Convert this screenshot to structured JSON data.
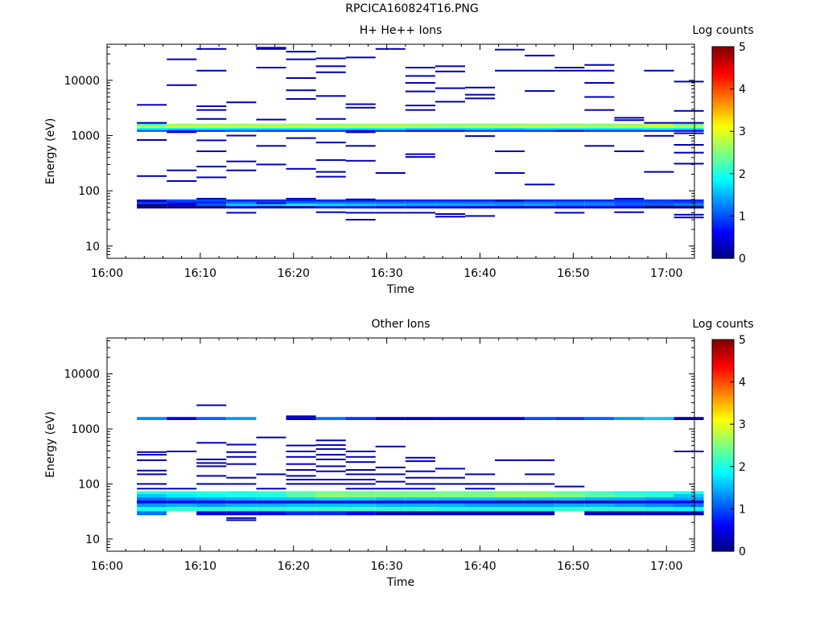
{
  "figure_title": "RPCICA160824T16.PNG",
  "colors": {
    "background": "#ffffff",
    "axis": "#000000",
    "colormap": [
      "#00008f",
      "#0000ff",
      "#0080ff",
      "#00ffff",
      "#80ff80",
      "#ffff00",
      "#ff8000",
      "#ff0000",
      "#800000"
    ]
  },
  "chart_data": [
    {
      "type": "heatmap",
      "title": "H+ He++ Ions",
      "xlabel": "Time",
      "ylabel": "Energy (eV)",
      "x_ticks": [
        "16:00",
        "16:10",
        "16:20",
        "16:30",
        "16:40",
        "16:50",
        "17:00"
      ],
      "x_tick_minutes": [
        0,
        10,
        20,
        30,
        40,
        50,
        60
      ],
      "x_range_minutes": [
        0,
        63
      ],
      "y_scale": "log",
      "y_range": [
        6,
        45000
      ],
      "y_ticks": [
        10,
        100,
        1000,
        10000
      ],
      "y_tick_labels": [
        "10",
        "100",
        "1000",
        "10000"
      ],
      "colorbar": {
        "label": "Log counts",
        "range": [
          0,
          5
        ],
        "ticks": [
          "0",
          "1",
          "2",
          "3",
          "4",
          "5"
        ]
      },
      "time_bin_starts_min": [
        3.2,
        6.4,
        9.6,
        12.8,
        16.0,
        19.2,
        22.4,
        25.6,
        28.8,
        32.0,
        35.2,
        38.4,
        41.6,
        44.8,
        48.0,
        51.2,
        54.4,
        57.6,
        60.8
      ],
      "time_bin_width_min": 3.2,
      "bands": [
        {
          "e_lo": 1500,
          "e_hi": 1650,
          "values": [
            2.2,
            2.6,
            2.6,
            2.6,
            2.6,
            2.6,
            2.6,
            2.6,
            2.6,
            2.6,
            2.5,
            2.5,
            2.5,
            2.6,
            2.5,
            2.5,
            2.6,
            2.8,
            2.4
          ]
        },
        {
          "e_lo": 1380,
          "e_hi": 1500,
          "values": [
            2.9,
            3.0,
            3.0,
            3.0,
            3.0,
            3.0,
            2.9,
            2.9,
            2.9,
            2.8,
            2.8,
            2.9,
            2.9,
            2.9,
            2.9,
            2.8,
            2.9,
            3.0,
            2.9
          ]
        },
        {
          "e_lo": 1270,
          "e_hi": 1380,
          "values": [
            1.9,
            1.8,
            1.9,
            1.8,
            1.8,
            1.8,
            1.8,
            1.8,
            1.9,
            1.7,
            1.7,
            1.8,
            1.7,
            1.8,
            1.8,
            1.8,
            1.8,
            1.9,
            1.8
          ]
        },
        {
          "e_lo": 1170,
          "e_hi": 1270,
          "values": [
            1.0,
            0.8,
            0.8,
            1.0,
            0.8,
            0.8,
            0.8,
            0.5,
            0.8,
            0.5,
            0.5,
            0.8,
            0.8,
            0.8,
            0.5,
            0.8,
            0.8,
            0.8,
            0.5
          ]
        },
        {
          "e_lo": 64,
          "e_hi": 70,
          "values": [
            1.0,
            1.0,
            1.0,
            0.8,
            0.8,
            0.8,
            0.8,
            0.8,
            0.8,
            0.8,
            0.8,
            0.8,
            0.8,
            0.8,
            0.8,
            0.8,
            0.9,
            0.9,
            0.8
          ]
        },
        {
          "e_lo": 58,
          "e_hi": 64,
          "values": [
            0.9,
            0.8,
            0.8,
            1.2,
            1.2,
            1.2,
            1.2,
            1.2,
            1.2,
            1.2,
            1.2,
            1.2,
            1.2,
            1.2,
            1.2,
            1.2,
            1.0,
            1.0,
            1.0
          ]
        },
        {
          "e_lo": 53,
          "e_hi": 58,
          "values": [
            0.0,
            0.6,
            1.0,
            1.6,
            1.6,
            1.8,
            1.7,
            1.6,
            1.5,
            1.4,
            1.4,
            1.4,
            1.3,
            1.4,
            1.2,
            1.2,
            1.0,
            1.0,
            1.2
          ]
        },
        {
          "e_lo": 48,
          "e_hi": 53,
          "values": [
            0.0,
            0.0,
            0.0,
            0.8,
            0.8,
            0.8,
            0.8,
            0.8,
            0.7,
            0.7,
            0.7,
            0.6,
            0.6,
            0.5,
            0.6,
            0.6,
            0.6,
            0.0,
            0.0
          ]
        }
      ],
      "sparse_counts": [
        [
          0,
          3600
        ],
        [
          0,
          1700
        ],
        [
          0,
          830
        ],
        [
          0,
          185
        ],
        [
          0,
          66
        ],
        [
          1,
          24000
        ],
        [
          1,
          8200
        ],
        [
          1,
          1150
        ],
        [
          1,
          235
        ],
        [
          1,
          150
        ],
        [
          1,
          58
        ],
        [
          2,
          37000
        ],
        [
          2,
          15000
        ],
        [
          2,
          3400
        ],
        [
          2,
          2900
        ],
        [
          2,
          2000
        ],
        [
          2,
          820
        ],
        [
          2,
          520
        ],
        [
          2,
          275
        ],
        [
          2,
          175
        ],
        [
          2,
          72
        ],
        [
          3,
          4000
        ],
        [
          3,
          1000
        ],
        [
          3,
          340
        ],
        [
          3,
          235
        ],
        [
          3,
          50
        ],
        [
          3,
          40
        ],
        [
          4,
          39000
        ],
        [
          4,
          37000
        ],
        [
          4,
          17000
        ],
        [
          4,
          1950
        ],
        [
          4,
          650
        ],
        [
          4,
          300
        ],
        [
          4,
          60
        ],
        [
          4,
          51
        ],
        [
          5,
          33000
        ],
        [
          5,
          24000
        ],
        [
          5,
          11000
        ],
        [
          5,
          6600
        ],
        [
          5,
          4600
        ],
        [
          5,
          900
        ],
        [
          5,
          250
        ],
        [
          5,
          72
        ],
        [
          5,
          51
        ],
        [
          6,
          25000
        ],
        [
          6,
          18000
        ],
        [
          6,
          14000
        ],
        [
          6,
          5200
        ],
        [
          6,
          2000
        ],
        [
          6,
          750
        ],
        [
          6,
          360
        ],
        [
          6,
          220
        ],
        [
          6,
          180
        ],
        [
          6,
          41
        ],
        [
          7,
          26000
        ],
        [
          7,
          3700
        ],
        [
          7,
          3200
        ],
        [
          7,
          1150
        ],
        [
          7,
          650
        ],
        [
          7,
          350
        ],
        [
          7,
          70
        ],
        [
          7,
          40
        ],
        [
          7,
          30
        ],
        [
          8,
          37000
        ],
        [
          8,
          210
        ],
        [
          8,
          40
        ],
        [
          9,
          17000
        ],
        [
          9,
          12000
        ],
        [
          9,
          9000
        ],
        [
          9,
          6300
        ],
        [
          9,
          3500
        ],
        [
          9,
          2900
        ],
        [
          9,
          460
        ],
        [
          9,
          410
        ],
        [
          9,
          40
        ],
        [
          10,
          18000
        ],
        [
          10,
          14500
        ],
        [
          10,
          7200
        ],
        [
          10,
          4100
        ],
        [
          10,
          38
        ],
        [
          10,
          34
        ],
        [
          11,
          7400
        ],
        [
          11,
          5500
        ],
        [
          11,
          4700
        ],
        [
          11,
          980
        ],
        [
          11,
          35
        ],
        [
          12,
          36000
        ],
        [
          12,
          15000
        ],
        [
          12,
          520
        ],
        [
          12,
          210
        ],
        [
          12,
          66
        ],
        [
          13,
          28000
        ],
        [
          13,
          15000
        ],
        [
          13,
          6400
        ],
        [
          13,
          130
        ],
        [
          14,
          17000
        ],
        [
          14,
          15000
        ],
        [
          14,
          40
        ],
        [
          15,
          19000
        ],
        [
          15,
          15000
        ],
        [
          15,
          9000
        ],
        [
          15,
          5000
        ],
        [
          15,
          2900
        ],
        [
          15,
          650
        ],
        [
          16,
          2100
        ],
        [
          16,
          1900
        ],
        [
          16,
          520
        ],
        [
          16,
          72
        ],
        [
          16,
          41
        ],
        [
          17,
          15000
        ],
        [
          17,
          1700
        ],
        [
          17,
          990
        ],
        [
          17,
          220
        ],
        [
          18,
          9500
        ],
        [
          18,
          2800
        ],
        [
          18,
          1700
        ],
        [
          18,
          1100
        ],
        [
          18,
          680
        ],
        [
          18,
          490
        ],
        [
          18,
          310
        ],
        [
          18,
          37
        ],
        [
          18,
          33
        ]
      ]
    },
    {
      "type": "heatmap",
      "title": "Other Ions",
      "xlabel": "Time",
      "ylabel": "Energy (eV)",
      "x_ticks": [
        "16:00",
        "16:10",
        "16:20",
        "16:30",
        "16:40",
        "16:50",
        "17:00"
      ],
      "x_tick_minutes": [
        0,
        10,
        20,
        30,
        40,
        50,
        60
      ],
      "x_range_minutes": [
        0,
        63
      ],
      "y_scale": "log",
      "y_range": [
        6,
        45000
      ],
      "y_ticks": [
        10,
        100,
        1000,
        10000
      ],
      "y_tick_labels": [
        "10",
        "100",
        "1000",
        "10000"
      ],
      "colorbar": {
        "label": "Log counts",
        "range": [
          0,
          5
        ],
        "ticks": [
          "0",
          "1",
          "2",
          "3",
          "4",
          "5"
        ]
      },
      "time_bin_starts_min": [
        3.2,
        6.4,
        9.6,
        12.8,
        16.0,
        19.2,
        22.4,
        25.6,
        28.8,
        32.0,
        35.2,
        38.4,
        41.6,
        44.8,
        48.0,
        51.2,
        54.4,
        57.6,
        60.8
      ],
      "time_bin_width_min": 3.2,
      "bands": [
        {
          "e_lo": 1450,
          "e_hi": 1650,
          "values": [
            1.3,
            0.5,
            1.1,
            1.4,
            -1,
            0.3,
            1.2,
            0.9,
            0.3,
            0.3,
            0.5,
            0.5,
            0.5,
            1.0,
            0.9,
            1.1,
            1.4,
            1.6,
            0.3
          ]
        },
        {
          "e_lo": 66,
          "e_hi": 74,
          "values": [
            2.0,
            2.0,
            2.1,
            2.0,
            2.1,
            2.3,
            2.4,
            2.4,
            2.4,
            2.4,
            2.4,
            2.4,
            2.5,
            2.5,
            2.3,
            2.2,
            2.0,
            2.0,
            2.0
          ]
        },
        {
          "e_lo": 57,
          "e_hi": 66,
          "values": [
            1.6,
            1.8,
            1.9,
            2.0,
            2.0,
            2.3,
            2.6,
            2.5,
            2.5,
            2.5,
            2.5,
            2.5,
            2.6,
            2.6,
            2.5,
            2.3,
            2.2,
            2.1,
            1.6
          ]
        },
        {
          "e_lo": 50,
          "e_hi": 57,
          "values": [
            1.2,
            1.3,
            1.4,
            1.5,
            1.6,
            1.6,
            1.7,
            1.7,
            1.6,
            1.6,
            1.6,
            1.6,
            1.6,
            1.6,
            1.6,
            1.5,
            1.5,
            1.4,
            1.4
          ]
        },
        {
          "e_lo": 44,
          "e_hi": 50,
          "values": [
            0.5,
            0.6,
            0.6,
            0.6,
            0.6,
            0.5,
            0.5,
            0.5,
            0.5,
            0.5,
            0.5,
            0.5,
            0.3,
            0.3,
            0.3,
            0.3,
            0.5,
            0.6,
            0.6
          ]
        },
        {
          "e_lo": 38,
          "e_hi": 44,
          "values": [
            1.4,
            1.5,
            1.4,
            1.5,
            1.5,
            1.6,
            1.6,
            1.6,
            1.5,
            1.5,
            1.5,
            1.4,
            1.4,
            1.4,
            1.5,
            1.5,
            1.4,
            1.3,
            1.2
          ]
        },
        {
          "e_lo": 32,
          "e_hi": 38,
          "values": [
            2.0,
            2.1,
            2.1,
            2.1,
            2.1,
            2.1,
            2.2,
            2.2,
            2.1,
            2.1,
            2.0,
            2.0,
            2.0,
            2.0,
            2.1,
            2.1,
            2.1,
            2.0,
            1.9
          ]
        },
        {
          "e_lo": 27,
          "e_hi": 32,
          "values": [
            1.2,
            -1,
            0.5,
            0.6,
            0.6,
            0.8,
            0.8,
            0.6,
            0.3,
            0.3,
            0.3,
            0.3,
            0.3,
            0.3,
            -1,
            0.3,
            0.3,
            0.3,
            0.3
          ]
        }
      ],
      "sparse_counts": [
        [
          0,
          380
        ],
        [
          0,
          340
        ],
        [
          0,
          270
        ],
        [
          0,
          175
        ],
        [
          0,
          150
        ],
        [
          0,
          100
        ],
        [
          0,
          82
        ],
        [
          1,
          390
        ],
        [
          1,
          82
        ],
        [
          2,
          2700
        ],
        [
          2,
          560
        ],
        [
          2,
          280
        ],
        [
          2,
          240
        ],
        [
          2,
          210
        ],
        [
          2,
          140
        ],
        [
          2,
          100
        ],
        [
          3,
          520
        ],
        [
          3,
          380
        ],
        [
          3,
          310
        ],
        [
          3,
          230
        ],
        [
          3,
          130
        ],
        [
          3,
          100
        ],
        [
          3,
          24
        ],
        [
          3,
          22
        ],
        [
          4,
          700
        ],
        [
          4,
          150
        ],
        [
          4,
          82
        ],
        [
          5,
          1700
        ],
        [
          5,
          500
        ],
        [
          5,
          390
        ],
        [
          5,
          310
        ],
        [
          5,
          230
        ],
        [
          5,
          180
        ],
        [
          5,
          140
        ],
        [
          5,
          120
        ],
        [
          5,
          100
        ],
        [
          6,
          620
        ],
        [
          6,
          510
        ],
        [
          6,
          430
        ],
        [
          6,
          340
        ],
        [
          6,
          280
        ],
        [
          6,
          210
        ],
        [
          6,
          170
        ],
        [
          6,
          120
        ],
        [
          6,
          100
        ],
        [
          7,
          390
        ],
        [
          7,
          310
        ],
        [
          7,
          250
        ],
        [
          7,
          180
        ],
        [
          7,
          150
        ],
        [
          7,
          120
        ],
        [
          7,
          100
        ],
        [
          7,
          82
        ],
        [
          8,
          480
        ],
        [
          8,
          200
        ],
        [
          8,
          150
        ],
        [
          8,
          110
        ],
        [
          8,
          82
        ],
        [
          9,
          300
        ],
        [
          9,
          260
        ],
        [
          9,
          170
        ],
        [
          9,
          130
        ],
        [
          9,
          100
        ],
        [
          9,
          82
        ],
        [
          10,
          190
        ],
        [
          10,
          130
        ],
        [
          10,
          100
        ],
        [
          11,
          150
        ],
        [
          11,
          100
        ],
        [
          11,
          82
        ],
        [
          12,
          270
        ],
        [
          12,
          100
        ],
        [
          13,
          270
        ],
        [
          13,
          150
        ],
        [
          13,
          100
        ],
        [
          14,
          90
        ],
        [
          18,
          390
        ]
      ]
    }
  ]
}
